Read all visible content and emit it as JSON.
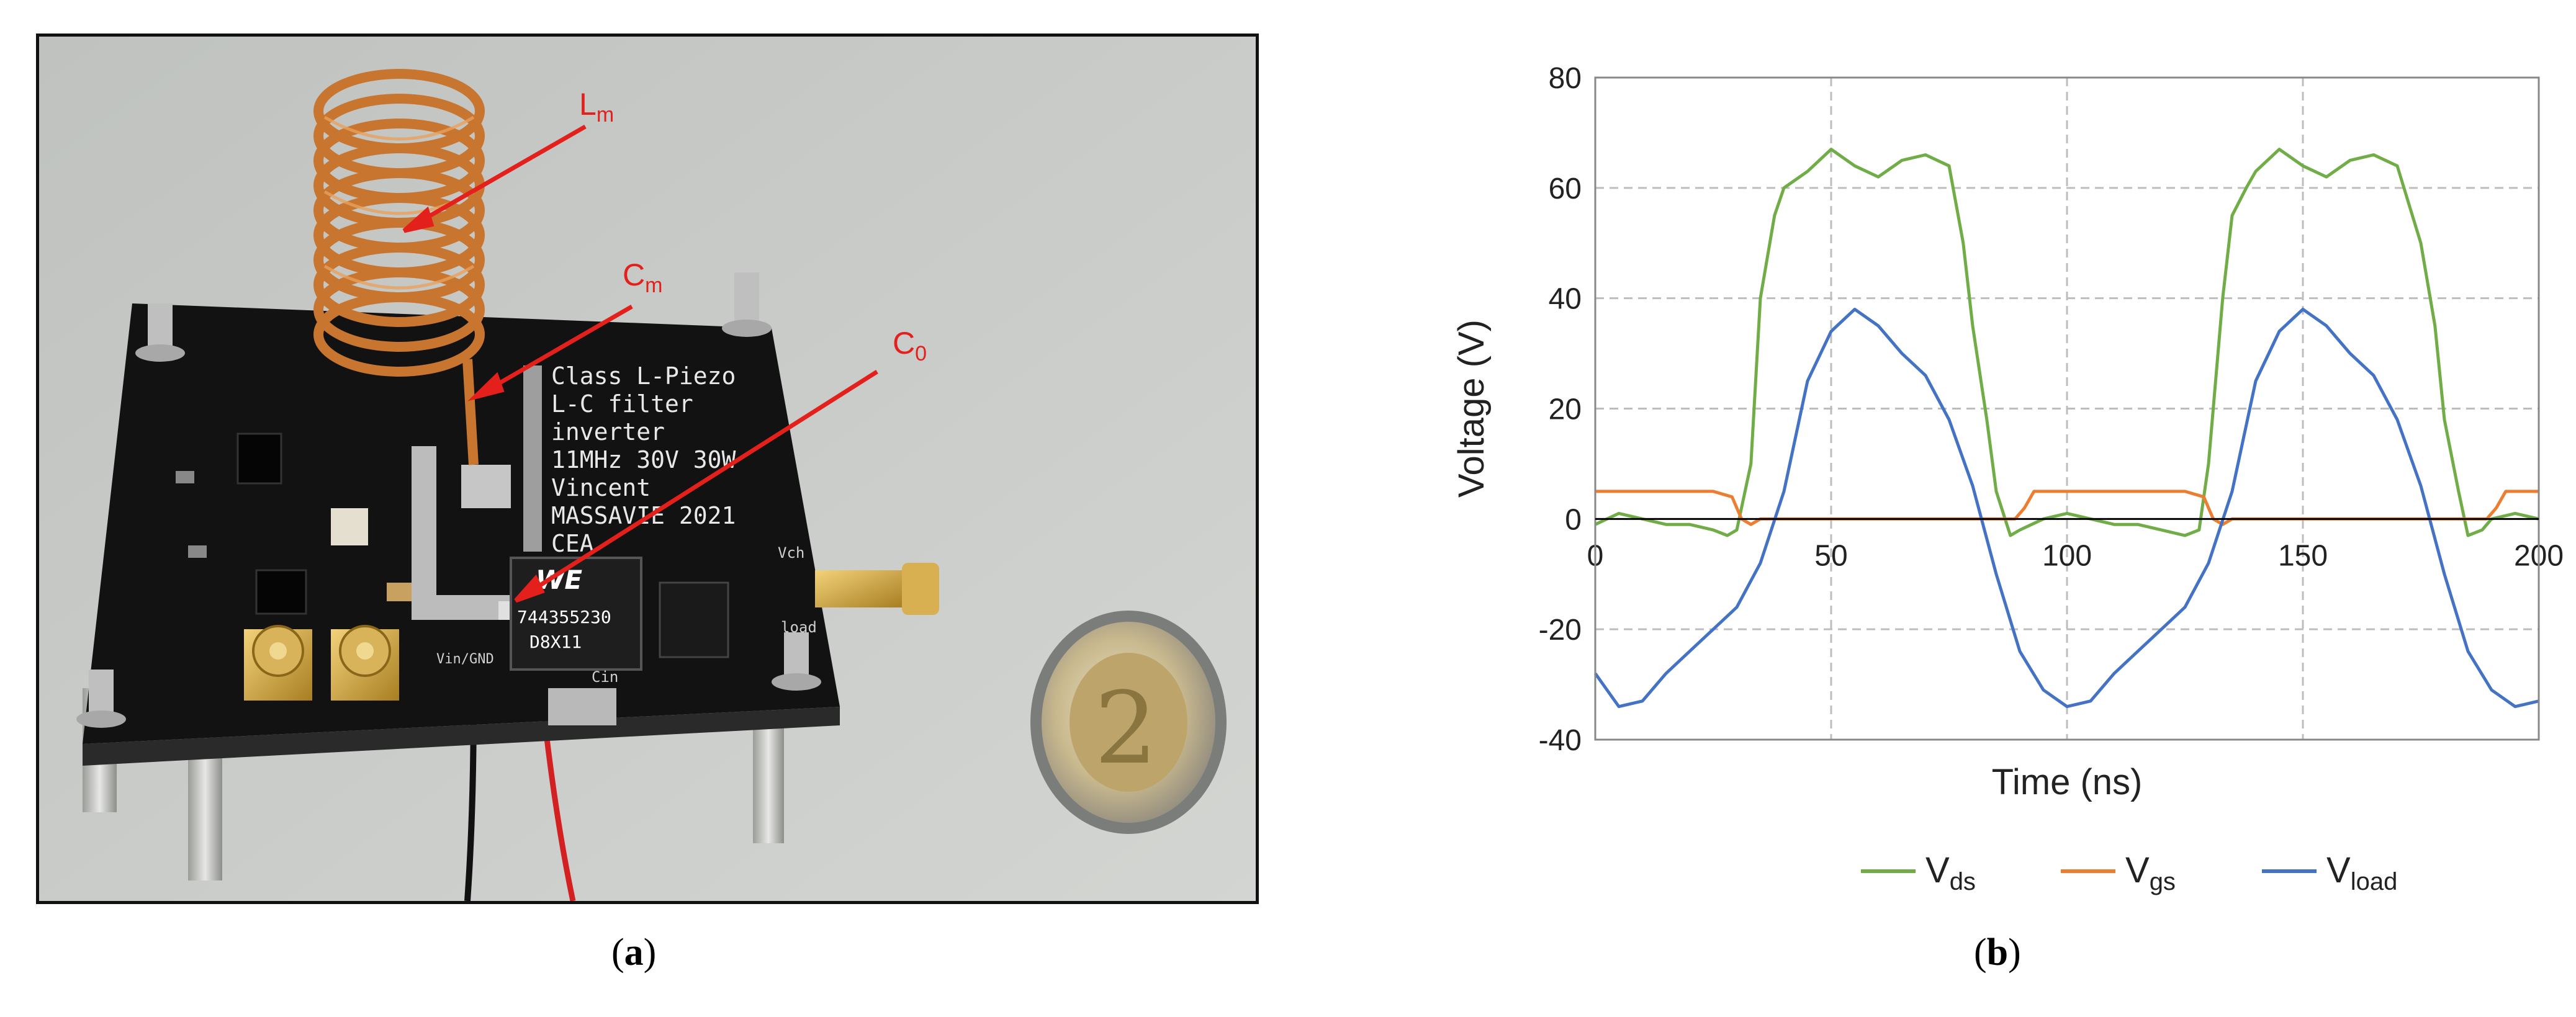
{
  "figure": {
    "panel_a": {
      "caption_letter": "a",
      "labels": {
        "lm": {
          "main": "L",
          "sub": "m"
        },
        "cm": {
          "main": "C",
          "sub": "m"
        },
        "c0": {
          "main": "C",
          "sub": "0"
        }
      },
      "board_text": [
        "Class L-Piezo",
        "L-C filter",
        "inverter",
        "11MHz 30V 30W",
        "Vincent",
        "MASSAVIE 2021",
        "CEA"
      ],
      "component_text": [
        "744355230",
        "D8X11"
      ],
      "pin_labels": {
        "vch": "Vch",
        "load": "load",
        "vin_gnd": "Vin/GND",
        "cin": "Cin"
      },
      "colors": {
        "annotation": "#e3201b",
        "pcb": "#111111",
        "copper": "#c8752f",
        "background": "#c7c9c6"
      }
    },
    "panel_b": {
      "caption_letter": "b"
    }
  },
  "chart_data": {
    "type": "line",
    "xlabel": "Time (ns)",
    "ylabel": "Voltage (V)",
    "xlim": [
      0,
      200
    ],
    "ylim": [
      -40,
      80
    ],
    "x_ticks": [
      0,
      50,
      100,
      150,
      200
    ],
    "y_ticks": [
      -40,
      -20,
      0,
      20,
      40,
      60,
      80
    ],
    "grid": true,
    "legend_position": "bottom",
    "series": [
      {
        "name": "V",
        "name_sub": "ds",
        "color": "#70ad47",
        "x": [
          0,
          5,
          10,
          15,
          20,
          25,
          28,
          30,
          33,
          35,
          38,
          40,
          45,
          50,
          55,
          60,
          65,
          70,
          75,
          78,
          80,
          83,
          85,
          88,
          90,
          95,
          100,
          105,
          110,
          115,
          120,
          125,
          128,
          130,
          133,
          135,
          138,
          140,
          145,
          150,
          155,
          160,
          165,
          170,
          175,
          178,
          180,
          183,
          185,
          188,
          190,
          195,
          200
        ],
        "y": [
          -1,
          1,
          0,
          -1,
          -1,
          -2,
          -3,
          -2,
          10,
          40,
          55,
          60,
          63,
          67,
          64,
          62,
          65,
          66,
          64,
          50,
          35,
          18,
          5,
          -3,
          -2,
          0,
          1,
          0,
          -1,
          -1,
          -2,
          -3,
          -2,
          10,
          40,
          55,
          60,
          63,
          67,
          64,
          62,
          65,
          66,
          64,
          50,
          35,
          18,
          5,
          -3,
          -2,
          0,
          1,
          0
        ]
      },
      {
        "name": "V",
        "name_sub": "gs",
        "color": "#ed7d31",
        "x": [
          0,
          5,
          10,
          15,
          20,
          25,
          29,
          31,
          33,
          35,
          40,
          45,
          50,
          60,
          70,
          80,
          85,
          87,
          89,
          91,
          93,
          95,
          100,
          105,
          110,
          115,
          120,
          125,
          129,
          131,
          133,
          135,
          140,
          145,
          150,
          160,
          170,
          180,
          185,
          187,
          189,
          191,
          193,
          195,
          200
        ],
        "y": [
          5,
          5,
          5,
          5,
          5,
          5,
          4,
          0,
          -1,
          0,
          0,
          0,
          0,
          0,
          0,
          0,
          0,
          0,
          0,
          2,
          5,
          5,
          5,
          5,
          5,
          5,
          5,
          5,
          4,
          0,
          -1,
          0,
          0,
          0,
          0,
          0,
          0,
          0,
          0,
          0,
          0,
          2,
          5,
          5,
          5
        ]
      },
      {
        "name": "V",
        "name_sub": "load",
        "color": "#4472c4",
        "x": [
          0,
          5,
          10,
          15,
          20,
          25,
          30,
          35,
          40,
          45,
          50,
          55,
          60,
          65,
          70,
          75,
          80,
          85,
          90,
          95,
          100,
          105,
          110,
          115,
          120,
          125,
          130,
          135,
          140,
          145,
          150,
          155,
          160,
          165,
          170,
          175,
          180,
          185,
          190,
          195,
          200
        ],
        "y": [
          -28,
          -34,
          -33,
          -28,
          -24,
          -20,
          -16,
          -8,
          5,
          25,
          34,
          38,
          35,
          30,
          26,
          18,
          6,
          -10,
          -24,
          -31,
          -34,
          -33,
          -28,
          -24,
          -20,
          -16,
          -8,
          5,
          25,
          34,
          38,
          35,
          30,
          26,
          18,
          6,
          -10,
          -24,
          -31,
          -34,
          -33
        ]
      }
    ]
  }
}
